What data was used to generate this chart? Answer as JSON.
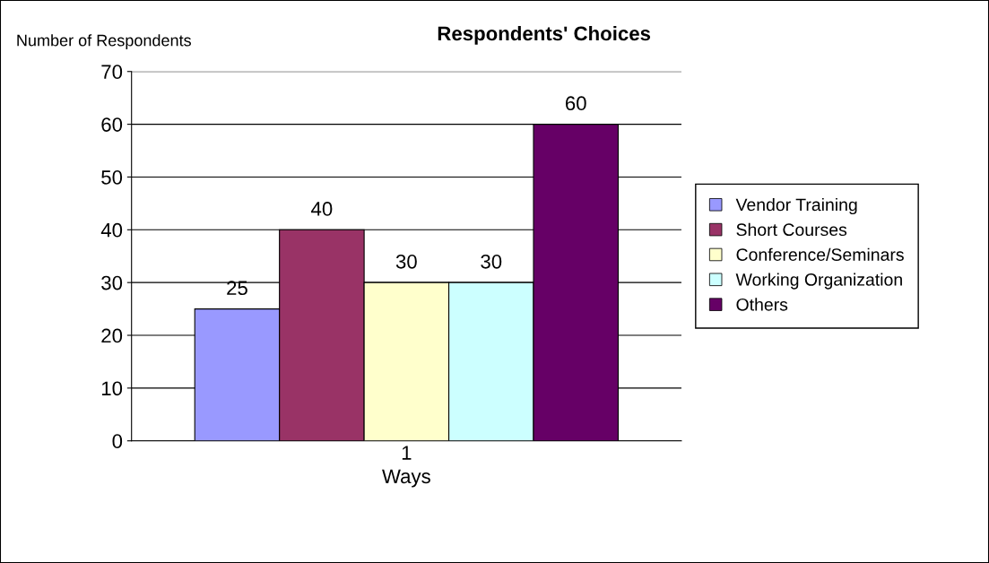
{
  "chart_data": {
    "type": "bar",
    "title": "Respondents' Choices",
    "xlabel": "Ways",
    "ylabel": "Number of Respondents",
    "categories": [
      "1"
    ],
    "series": [
      {
        "name": "Vendor Training",
        "color": "#9999ff",
        "values": [
          25
        ]
      },
      {
        "name": "Short Courses",
        "color": "#993366",
        "values": [
          40
        ]
      },
      {
        "name": "Conference/Seminars",
        "color": "#ffffcc",
        "values": [
          30
        ]
      },
      {
        "name": "Working Organization",
        "color": "#ccffff",
        "values": [
          30
        ]
      },
      {
        "name": "Others",
        "color": "#660066",
        "values": [
          60
        ]
      }
    ],
    "ylim": [
      0,
      70
    ],
    "yticks": [
      0,
      10,
      20,
      30,
      40,
      50,
      60,
      70
    ],
    "grid": "y",
    "legend": "right",
    "data_labels": true
  }
}
